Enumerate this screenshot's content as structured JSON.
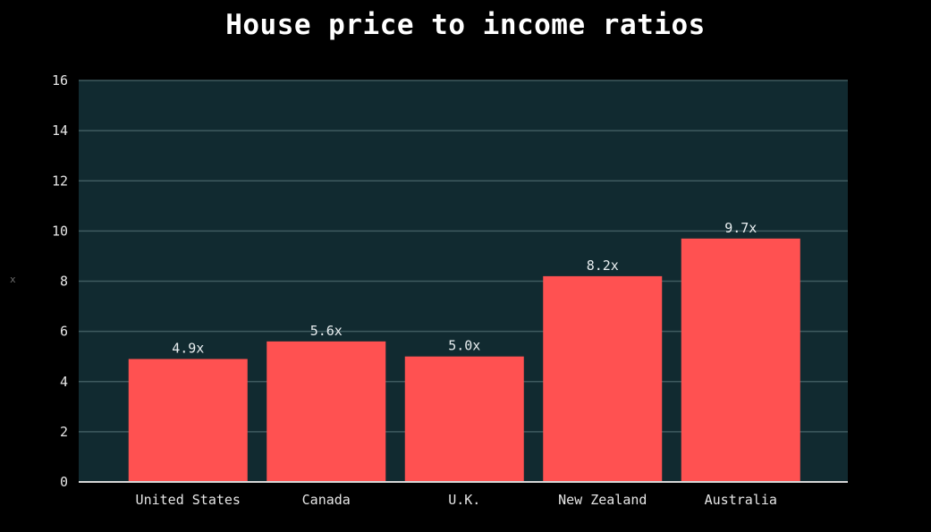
{
  "chart_data": {
    "type": "bar",
    "title": "House price to income ratios",
    "xlabel": "",
    "ylabel": "x",
    "categories": [
      "United States",
      "Canada",
      "U.K.",
      "New Zealand",
      "Australia"
    ],
    "values": [
      4.9,
      5.6,
      5.0,
      8.2,
      9.7
    ],
    "data_labels": [
      "4.9x",
      "5.6x",
      "5.0x",
      "8.2x",
      "9.7x"
    ],
    "ylim": [
      0,
      16
    ],
    "yticks": [
      0,
      2,
      4,
      6,
      8,
      10,
      12,
      14,
      16
    ],
    "grid": true,
    "legend": "none"
  },
  "colors": {
    "background": "#000000",
    "plot_background": "#112a30",
    "bar": "#ff5151",
    "grid": "#3f5a5f",
    "axis_line": "#d6d6d6"
  }
}
